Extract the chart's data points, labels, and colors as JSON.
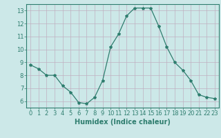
{
  "x": [
    0,
    1,
    2,
    3,
    4,
    5,
    6,
    7,
    8,
    9,
    10,
    11,
    12,
    13,
    14,
    15,
    16,
    17,
    18,
    19,
    20,
    21,
    22,
    23
  ],
  "y": [
    8.8,
    8.5,
    8.0,
    8.0,
    7.2,
    6.7,
    5.9,
    5.8,
    6.3,
    7.6,
    10.2,
    11.2,
    12.6,
    13.2,
    13.2,
    13.2,
    11.8,
    10.2,
    9.0,
    8.4,
    7.6,
    6.5,
    6.3,
    6.2
  ],
  "xlabel": "Humidex (Indice chaleur)",
  "ylim": [
    5.5,
    13.5
  ],
  "xlim": [
    -0.5,
    23.5
  ],
  "yticks": [
    6,
    7,
    8,
    9,
    10,
    11,
    12,
    13
  ],
  "xticks": [
    0,
    1,
    2,
    3,
    4,
    5,
    6,
    7,
    8,
    9,
    10,
    11,
    12,
    13,
    14,
    15,
    16,
    17,
    18,
    19,
    20,
    21,
    22,
    23
  ],
  "line_color": "#2e7d6e",
  "marker": "*",
  "bg_color": "#cce8e8",
  "grid_color": "#c0afc0",
  "axis_color": "#2e7d6e",
  "label_fontsize": 7,
  "tick_fontsize": 6
}
